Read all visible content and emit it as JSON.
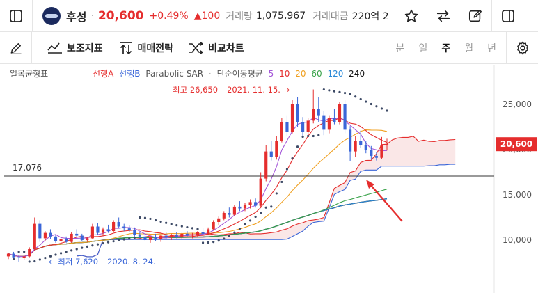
{
  "header": {
    "stock_name": "후성",
    "price": "20,600",
    "change_rate": "+0.49%",
    "change_value": "▲100",
    "volume_label": "거래량",
    "volume_value": "1,075,967",
    "amount_label": "거래대금",
    "amount_value": "220억 2",
    "icons": [
      "sidebar-left-icon",
      "star-icon",
      "swap-icon",
      "edit-icon",
      "sidebar-right-icon"
    ]
  },
  "toolbar": {
    "indicators_label": "보조지표",
    "strategy_label": "매매전략",
    "compare_label": "비교차트",
    "periods": [
      "분",
      "일",
      "주",
      "월",
      "년"
    ],
    "active_period": "주"
  },
  "chart_data": {
    "type": "line",
    "title": "일목균형표",
    "legend": [
      {
        "name": "선행A",
        "color": "#e52d2d"
      },
      {
        "name": "선행B",
        "color": "#3a66d8"
      },
      {
        "name": "Parabolic SAR",
        "color": "#555555"
      },
      {
        "name": "단순이동평균",
        "color": "#555555"
      },
      {
        "name": "5",
        "color": "#a457d8"
      },
      {
        "name": "10",
        "color": "#e52d2d"
      },
      {
        "name": "20",
        "color": "#f0a020"
      },
      {
        "name": "60",
        "color": "#3aa34a"
      },
      {
        "name": "120",
        "color": "#2b8ad8"
      },
      {
        "name": "240",
        "color": "#111111"
      }
    ],
    "y_ticks": [
      "25,000",
      "20,000",
      "15,000",
      "10,000"
    ],
    "ylim": [
      6500,
      28500
    ],
    "current_price_label": "20,600",
    "current_price": 20600,
    "horizontal_line_label": "17,076",
    "horizontal_line": 17076,
    "max_annotation": "최고 26,650 – 2021. 11. 15. →",
    "min_annotation": "← 최저 7,620 – 2020. 8. 24.",
    "candles": [
      [
        8200,
        8600,
        7900,
        8500
      ],
      [
        8500,
        8700,
        8000,
        8100
      ],
      [
        8100,
        8300,
        7620,
        8000
      ],
      [
        8000,
        8300,
        7800,
        8200
      ],
      [
        8200,
        9200,
        8100,
        9000
      ],
      [
        9000,
        12500,
        8800,
        11800
      ],
      [
        11800,
        12200,
        9800,
        10200
      ],
      [
        10200,
        11000,
        9900,
        10800
      ],
      [
        10800,
        11200,
        10100,
        10400
      ],
      [
        10400,
        10600,
        9700,
        9900
      ],
      [
        9900,
        10300,
        9600,
        10100
      ],
      [
        10100,
        10400,
        9700,
        9800
      ],
      [
        9800,
        10900,
        9700,
        10700
      ],
      [
        10700,
        11200,
        10300,
        10500
      ],
      [
        10500,
        10700,
        9900,
        10000
      ],
      [
        10000,
        10300,
        9800,
        10200
      ],
      [
        10200,
        11800,
        10100,
        11500
      ],
      [
        11500,
        11900,
        10600,
        10800
      ],
      [
        10800,
        11400,
        10500,
        11200
      ],
      [
        11200,
        11700,
        10800,
        11000
      ],
      [
        11000,
        12200,
        10900,
        12000
      ],
      [
        12000,
        12500,
        11300,
        11500
      ],
      [
        11500,
        11800,
        11000,
        11300
      ],
      [
        11300,
        11600,
        10900,
        11100
      ],
      [
        11100,
        11400,
        10400,
        10600
      ],
      [
        10600,
        10900,
        10200,
        10400
      ],
      [
        10400,
        10800,
        9900,
        10000
      ],
      [
        10000,
        10500,
        9700,
        10300
      ],
      [
        10300,
        10700,
        9900,
        10100
      ],
      [
        10100,
        10600,
        9800,
        10500
      ],
      [
        10500,
        10900,
        10100,
        10300
      ],
      [
        10300,
        10700,
        10000,
        10600
      ],
      [
        10600,
        10900,
        10200,
        10400
      ],
      [
        10400,
        10800,
        10100,
        10700
      ],
      [
        10700,
        11000,
        10300,
        10500
      ],
      [
        10500,
        10800,
        10200,
        10600
      ],
      [
        10600,
        11000,
        10300,
        10900
      ],
      [
        10900,
        11300,
        10600,
        10700
      ],
      [
        10700,
        11400,
        10600,
        11200
      ],
      [
        11200,
        12200,
        11100,
        12000
      ],
      [
        12000,
        12600,
        11700,
        12400
      ],
      [
        12400,
        13200,
        12200,
        13000
      ],
      [
        13000,
        13600,
        12500,
        12800
      ],
      [
        12800,
        13900,
        12700,
        13700
      ],
      [
        13700,
        14300,
        13200,
        13500
      ],
      [
        13500,
        14100,
        13200,
        13900
      ],
      [
        13900,
        14500,
        13500,
        14200
      ],
      [
        14200,
        14600,
        13600,
        13800
      ],
      [
        13800,
        17500,
        13700,
        16800
      ],
      [
        16800,
        20500,
        16500,
        19800
      ],
      [
        19800,
        21000,
        18800,
        19200
      ],
      [
        19200,
        21500,
        18900,
        21000
      ],
      [
        21000,
        23500,
        20800,
        23000
      ],
      [
        23000,
        23800,
        21500,
        22000
      ],
      [
        22000,
        25500,
        21800,
        25000
      ],
      [
        25000,
        25800,
        22500,
        23000
      ],
      [
        23000,
        23600,
        21500,
        22000
      ],
      [
        22000,
        23500,
        21600,
        23200
      ],
      [
        23200,
        26650,
        22900,
        24500
      ],
      [
        24500,
        25800,
        23000,
        23800
      ],
      [
        23800,
        24300,
        21600,
        22200
      ],
      [
        22200,
        23800,
        21800,
        23500
      ],
      [
        23500,
        24500,
        22800,
        23000
      ],
      [
        23000,
        25300,
        22800,
        25000
      ],
      [
        25000,
        25500,
        21800,
        22200
      ],
      [
        22200,
        22600,
        18700,
        19800
      ],
      [
        19800,
        21500,
        19200,
        21000
      ],
      [
        21000,
        22100,
        20200,
        20500
      ],
      [
        20500,
        21000,
        19600,
        20000
      ],
      [
        20000,
        20400,
        18900,
        19300
      ],
      [
        19300,
        19700,
        18800,
        19100
      ],
      [
        19100,
        21400,
        19000,
        20500
      ],
      [
        20500,
        21200,
        19900,
        20600
      ]
    ]
  }
}
